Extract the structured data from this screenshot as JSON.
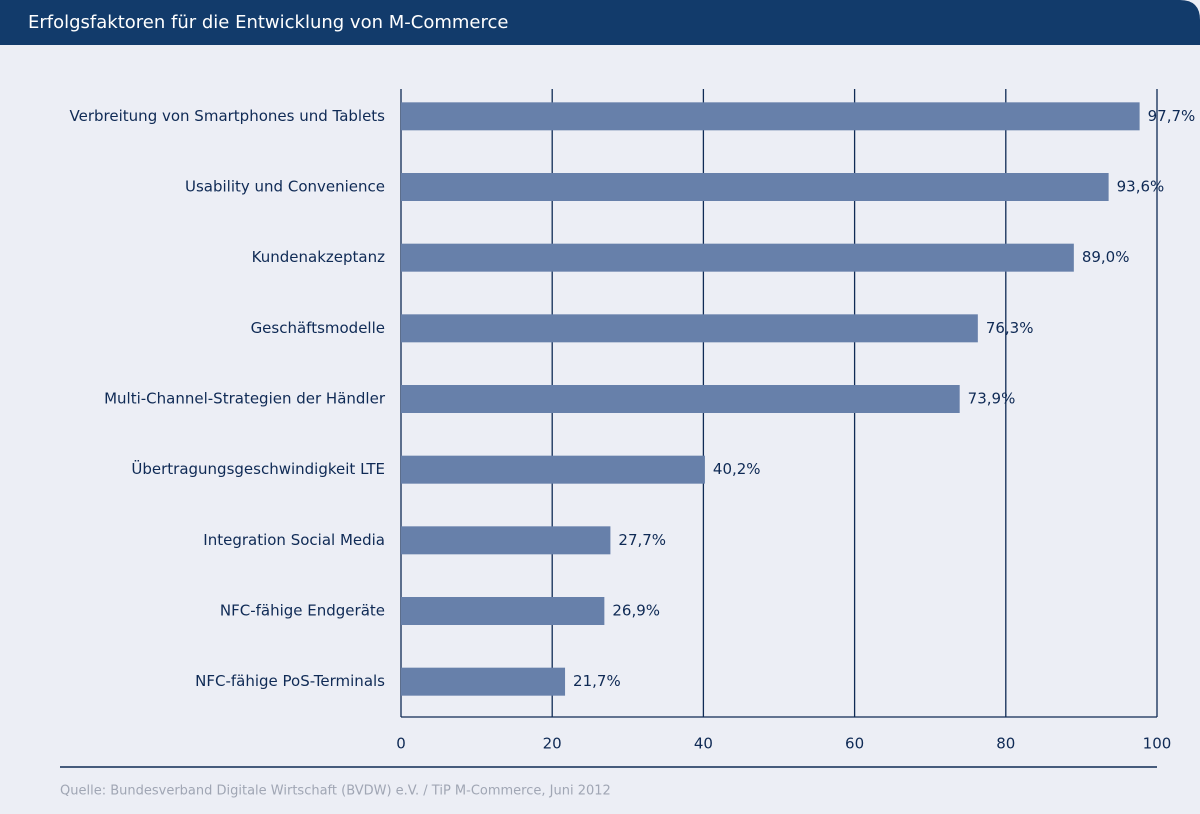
{
  "chart_data": {
    "type": "bar",
    "orientation": "horizontal",
    "title": "Erfolgsfaktoren für die Entwicklung von M-Commerce",
    "source": "Quelle: Bundesverband Digitale Wirtschaft (BVDW) e.V. / TiP M-Commerce, Juni 2012",
    "categories": [
      "Verbreitung von Smartphones und Tablets",
      "Usability und Convenience",
      "Kundenakzeptanz",
      "Geschäftsmodelle",
      "Multi-Channel-Strategien der Händler",
      "Übertragungsgeschwindigkeit LTE",
      "Integration Social Media",
      "NFC-fähige Endgeräte",
      "NFC-fähige PoS-Terminals"
    ],
    "values": [
      97.7,
      93.6,
      89.0,
      76.3,
      73.9,
      40.2,
      27.7,
      26.9,
      21.7
    ],
    "value_labels": [
      "97,7%",
      "93,6%",
      "89,0%",
      "76,3%",
      "73,9%",
      "40,2%",
      "27,7%",
      "26,9%",
      "21,7%"
    ],
    "color": "#6780aa",
    "xlim": [
      0,
      100
    ],
    "xticks": [
      0,
      20,
      40,
      60,
      80,
      100
    ],
    "grid": true
  }
}
